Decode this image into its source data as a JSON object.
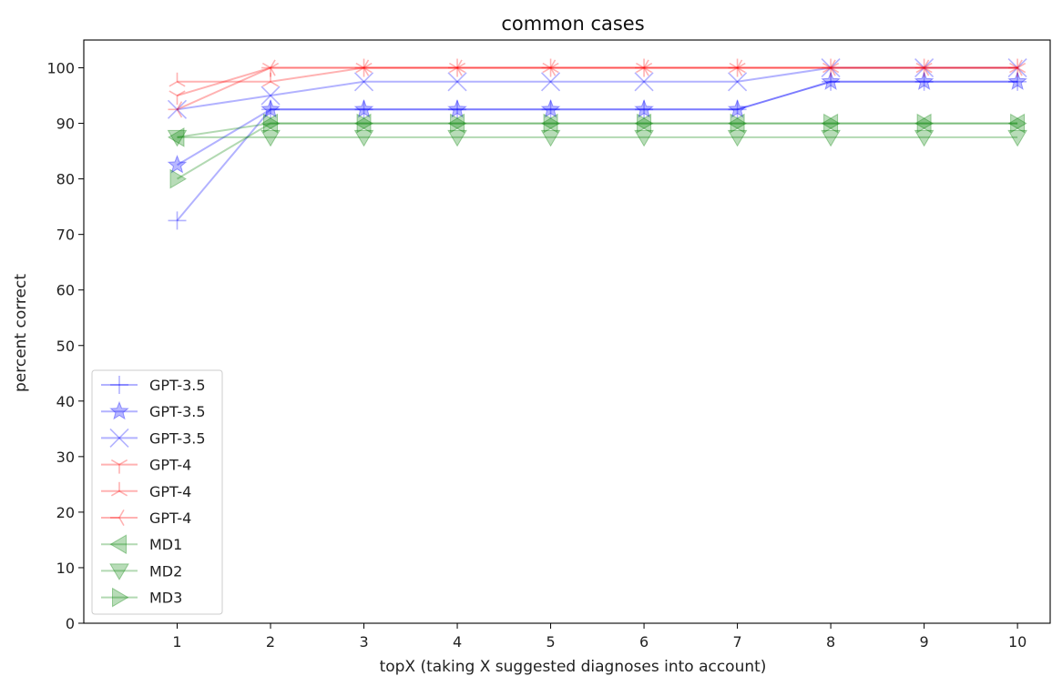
{
  "chart_data": {
    "type": "line",
    "title": "common cases",
    "xlabel": "topX (taking X suggested diagnoses into account)",
    "ylabel": "percent correct",
    "x": [
      1,
      2,
      3,
      4,
      5,
      6,
      7,
      8,
      9,
      10
    ],
    "xlim": [
      0,
      10.35
    ],
    "ylim": [
      0,
      105
    ],
    "xticks": [
      1,
      2,
      3,
      4,
      5,
      6,
      7,
      8,
      9,
      10
    ],
    "yticks": [
      0,
      10,
      20,
      30,
      40,
      50,
      60,
      70,
      80,
      90,
      100
    ],
    "grid": false,
    "legend_position": "lower-left",
    "series": [
      {
        "name": "GPT-3.5",
        "color": "#0000ff",
        "marker": "plus",
        "values": [
          72.5,
          92.5,
          92.5,
          92.5,
          92.5,
          92.5,
          92.5,
          97.5,
          97.5,
          97.5
        ]
      },
      {
        "name": "GPT-3.5",
        "color": "#0000ff",
        "marker": "star",
        "values": [
          82.5,
          92.5,
          92.5,
          92.5,
          92.5,
          92.5,
          92.5,
          97.5,
          97.5,
          97.5
        ]
      },
      {
        "name": "GPT-3.5",
        "color": "#0000ff",
        "marker": "x",
        "values": [
          92.5,
          95,
          97.5,
          97.5,
          97.5,
          97.5,
          97.5,
          100,
          100,
          100
        ]
      },
      {
        "name": "GPT-4",
        "color": "#ff0000",
        "marker": "tri_down",
        "values": [
          95,
          100,
          100,
          100,
          100,
          100,
          100,
          100,
          100,
          100
        ]
      },
      {
        "name": "GPT-4",
        "color": "#ff0000",
        "marker": "tri_up",
        "values": [
          97.5,
          97.5,
          100,
          100,
          100,
          100,
          100,
          100,
          100,
          100
        ]
      },
      {
        "name": "GPT-4",
        "color": "#ff0000",
        "marker": "tri_left",
        "values": [
          92.5,
          100,
          100,
          100,
          100,
          100,
          100,
          100,
          100,
          100
        ]
      },
      {
        "name": "MD1",
        "color": "#008000",
        "marker": "triangle_left",
        "values": [
          87.5,
          90,
          90,
          90,
          90,
          90,
          90,
          90,
          90,
          90
        ]
      },
      {
        "name": "MD2",
        "color": "#008000",
        "marker": "triangle_down",
        "values": [
          87.5,
          87.5,
          87.5,
          87.5,
          87.5,
          87.5,
          87.5,
          87.5,
          87.5,
          87.5
        ]
      },
      {
        "name": "MD3",
        "color": "#008000",
        "marker": "triangle_right",
        "values": [
          80,
          90,
          90,
          90,
          90,
          90,
          90,
          90,
          90,
          90
        ]
      }
    ]
  }
}
